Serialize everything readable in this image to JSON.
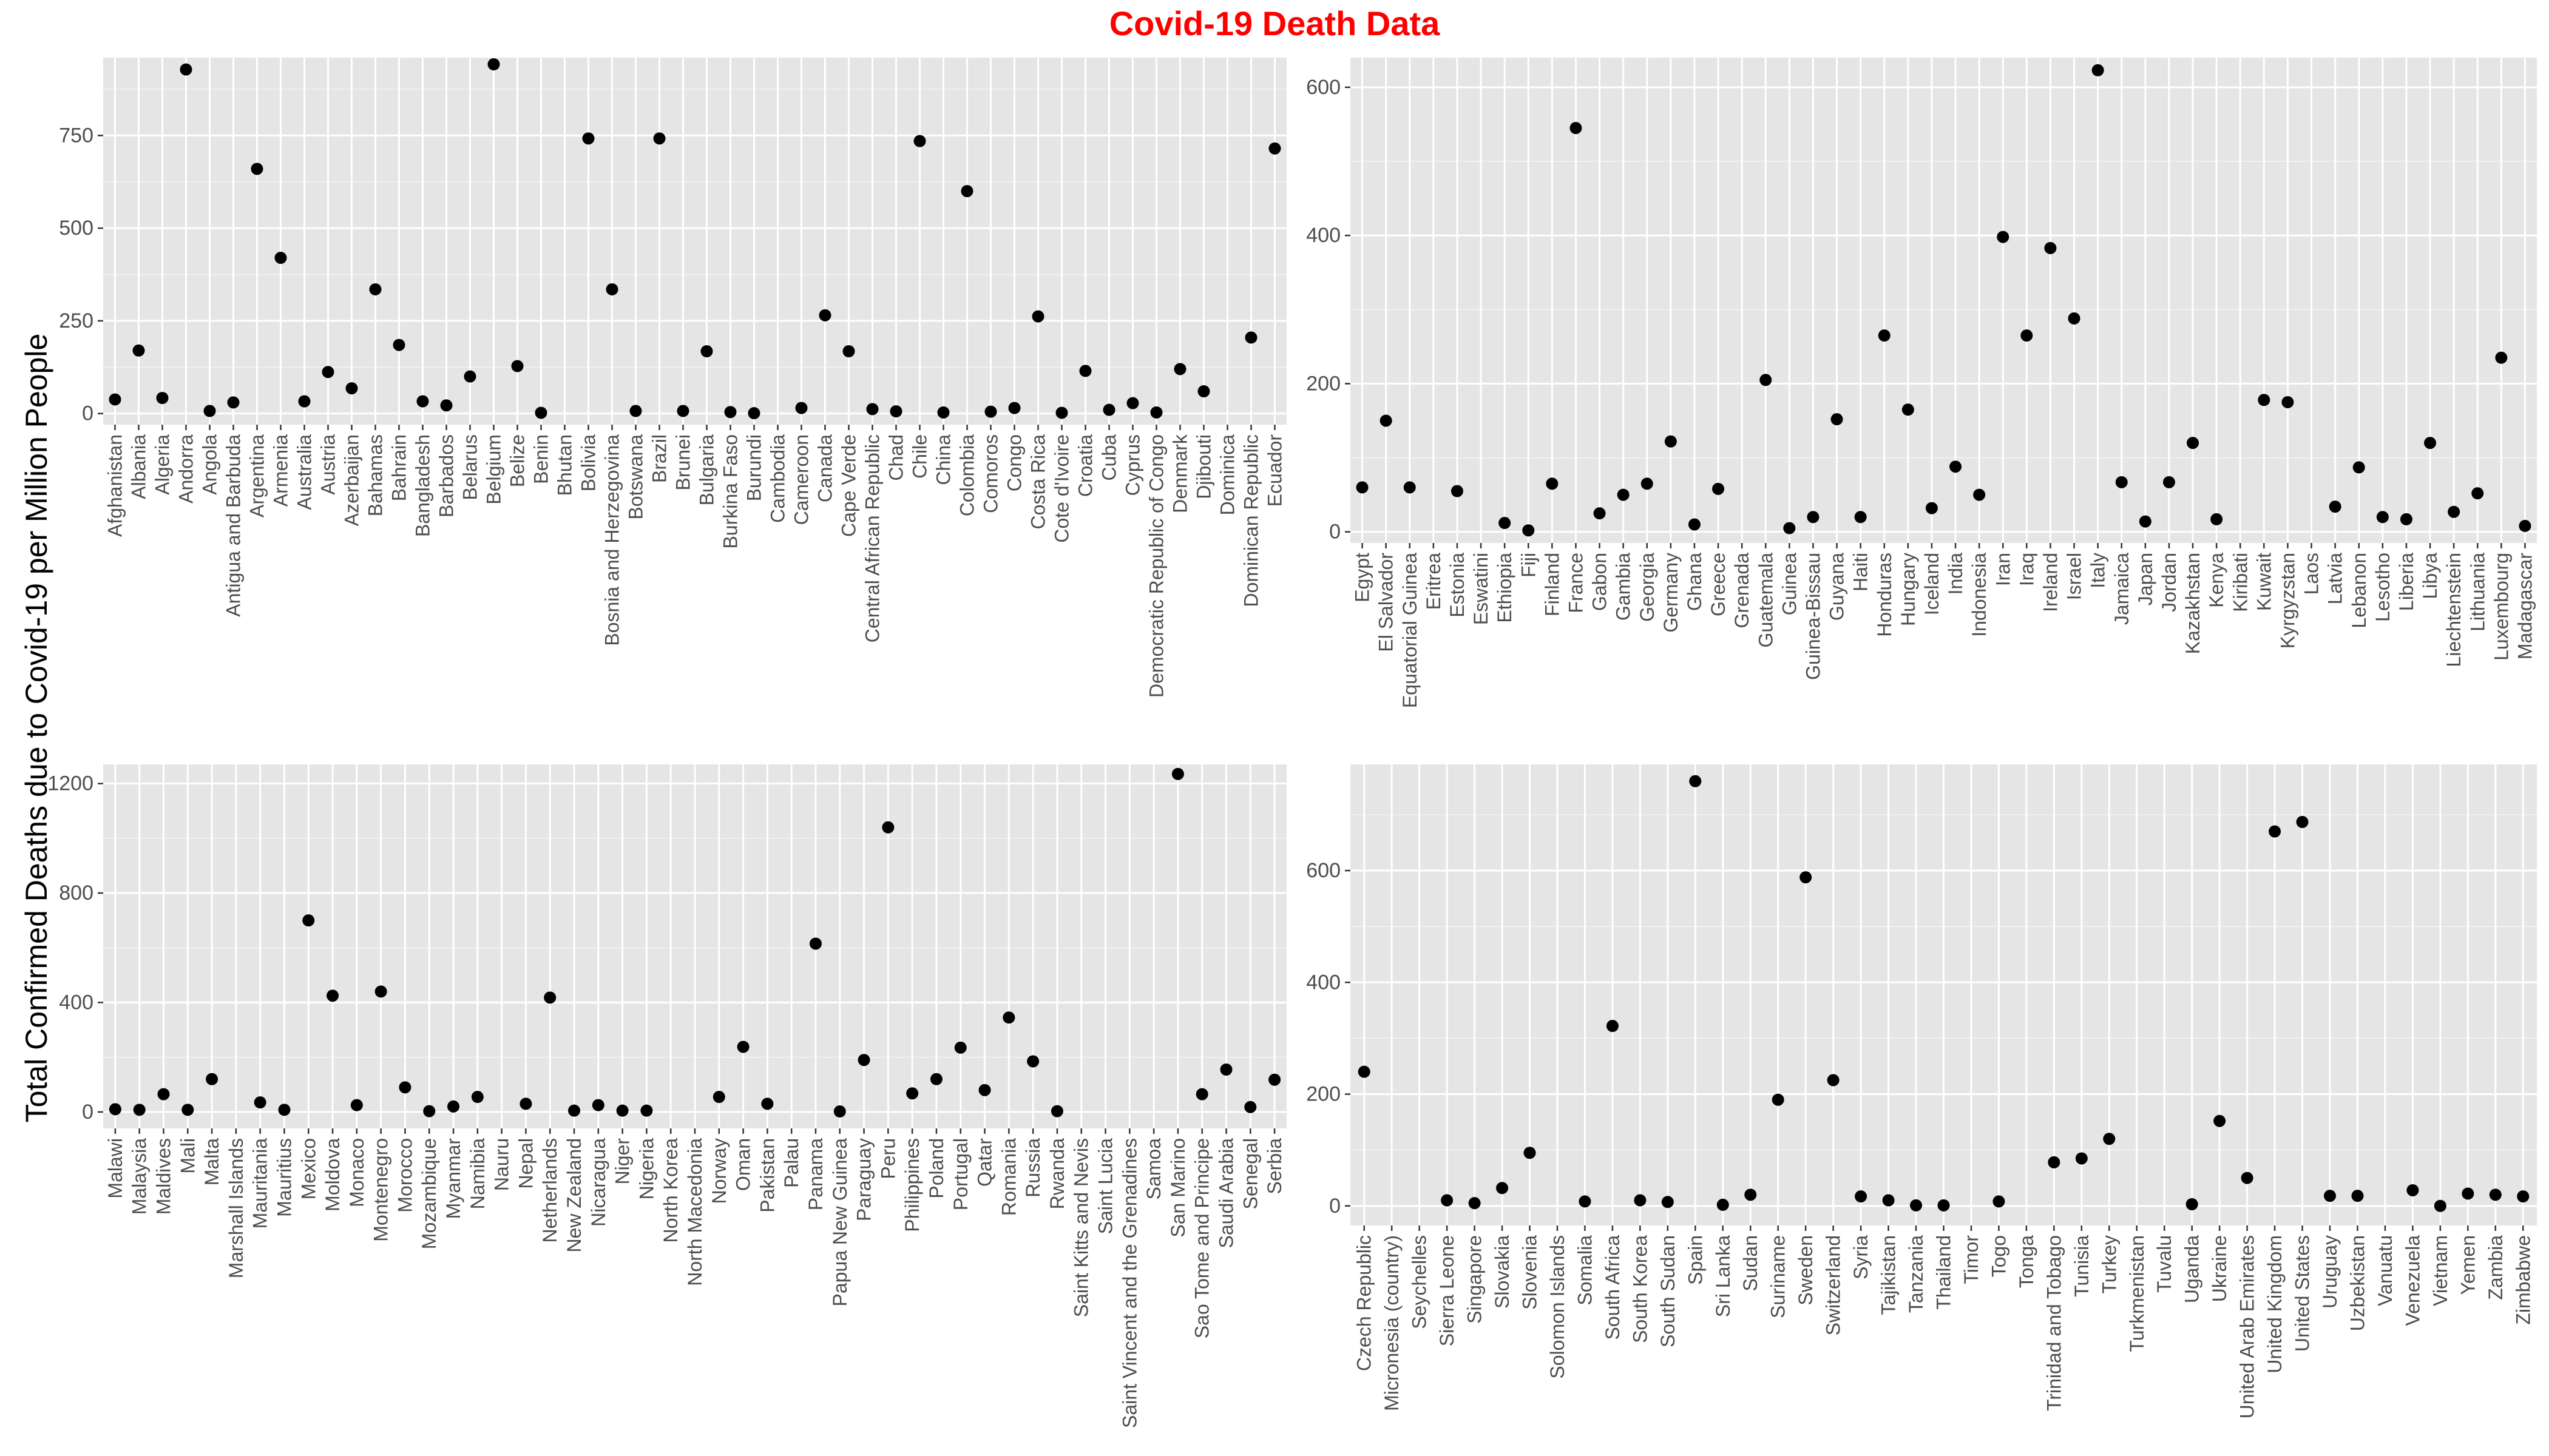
{
  "title": "Covid-19 Death Data",
  "title_color": "#ff0000",
  "ylabel": "Total Confirmed Deaths due to Covid-19 per Million People",
  "panel_bg": "#e5e5e5",
  "grid_color": "#ffffff",
  "point_color": "#000000",
  "chart_data": [
    {
      "type": "scatter",
      "ylim": [
        -30,
        960
      ],
      "yticks": [
        0,
        250,
        500,
        750
      ],
      "grid": true,
      "categories": [
        "Afghanistan",
        "Albania",
        "Algeria",
        "Andorra",
        "Angola",
        "Antigua and Barbuda",
        "Argentina",
        "Armenia",
        "Australia",
        "Austria",
        "Azerbaijan",
        "Bahamas",
        "Bahrain",
        "Bangladesh",
        "Barbados",
        "Belarus",
        "Belgium",
        "Belize",
        "Benin",
        "Bhutan",
        "Bolivia",
        "Bosnia and Herzegovina",
        "Botswana",
        "Brazil",
        "Brunei",
        "Bulgaria",
        "Burkina Faso",
        "Burundi",
        "Cambodia",
        "Cameroon",
        "Canada",
        "Cape Verde",
        "Central African Republic",
        "Chad",
        "Chile",
        "China",
        "Colombia",
        "Comoros",
        "Congo",
        "Costa Rica",
        "Cote d'Ivoire",
        "Croatia",
        "Cuba",
        "Cyprus",
        "Democratic Republic of Congo",
        "Denmark",
        "Djibouti",
        "Dominica",
        "Dominican Republic",
        "Ecuador"
      ],
      "values": [
        38,
        170,
        42,
        928,
        7,
        30,
        660,
        420,
        33,
        112,
        68,
        335,
        185,
        33,
        22,
        100,
        942,
        128,
        2,
        null,
        742,
        335,
        7,
        742,
        7,
        168,
        4,
        1,
        null,
        15,
        265,
        168,
        12,
        6,
        735,
        3,
        600,
        5,
        15,
        262,
        2,
        115,
        10,
        28,
        3,
        120,
        60,
        null,
        205,
        715
      ]
    },
    {
      "type": "scatter",
      "ylim": [
        -15,
        640
      ],
      "yticks": [
        0,
        200,
        400,
        600
      ],
      "grid": true,
      "categories": [
        "Egypt",
        "El Salvador",
        "Equatorial Guinea",
        "Eritrea",
        "Estonia",
        "Eswatini",
        "Ethiopia",
        "Fiji",
        "Finland",
        "France",
        "Gabon",
        "Gambia",
        "Georgia",
        "Germany",
        "Ghana",
        "Greece",
        "Grenada",
        "Guatemala",
        "Guinea",
        "Guinea-Bissau",
        "Guyana",
        "Haiti",
        "Honduras",
        "Hungary",
        "Iceland",
        "India",
        "Indonesia",
        "Iran",
        "Iraq",
        "Ireland",
        "Israel",
        "Italy",
        "Jamaica",
        "Japan",
        "Jordan",
        "Kazakhstan",
        "Kenya",
        "Kiribati",
        "Kuwait",
        "Kyrgyzstan",
        "Laos",
        "Latvia",
        "Lebanon",
        "Lesotho",
        "Liberia",
        "Libya",
        "Liechtenstein",
        "Lithuania",
        "Luxembourg",
        "Madagascar"
      ],
      "values": [
        60,
        150,
        60,
        null,
        55,
        null,
        12,
        2,
        65,
        545,
        25,
        50,
        65,
        122,
        10,
        58,
        null,
        205,
        5,
        20,
        152,
        20,
        265,
        165,
        32,
        88,
        50,
        398,
        265,
        383,
        288,
        623,
        67,
        14,
        67,
        120,
        17,
        null,
        178,
        175,
        null,
        34,
        87,
        20,
        17,
        120,
        27,
        52,
        235,
        8
      ]
    },
    {
      "type": "scatter",
      "ylim": [
        -60,
        1270
      ],
      "yticks": [
        0,
        400,
        800,
        1200
      ],
      "grid": true,
      "categories": [
        "Malawi",
        "Malaysia",
        "Maldives",
        "Mali",
        "Malta",
        "Marshall Islands",
        "Mauritania",
        "Mauritius",
        "Mexico",
        "Moldova",
        "Monaco",
        "Montenegro",
        "Morocco",
        "Mozambique",
        "Myanmar",
        "Namibia",
        "Nauru",
        "Nepal",
        "Netherlands",
        "New Zealand",
        "Nicaragua",
        "Niger",
        "Nigeria",
        "North Korea",
        "North Macedonia",
        "Norway",
        "Oman",
        "Pakistan",
        "Palau",
        "Panama",
        "Papua New Guinea",
        "Paraguay",
        "Peru",
        "Philippines",
        "Poland",
        "Portugal",
        "Qatar",
        "Romania",
        "Russia",
        "Rwanda",
        "Saint Kitts and Nevis",
        "Saint Lucia",
        "Saint Vincent and the Grenadines",
        "Samoa",
        "San Marino",
        "Sao Tome and Principe",
        "Saudi Arabia",
        "Senegal",
        "Serbia"
      ],
      "values": [
        10,
        8,
        65,
        8,
        120,
        null,
        35,
        8,
        700,
        425,
        25,
        440,
        90,
        3,
        20,
        55,
        null,
        30,
        418,
        5,
        25,
        5,
        5,
        null,
        null,
        55,
        238,
        30,
        null,
        615,
        2,
        190,
        1040,
        68,
        120,
        235,
        80,
        345,
        185,
        3,
        null,
        null,
        null,
        null,
        1235,
        65,
        155,
        18,
        118
      ]
    },
    {
      "type": "scatter",
      "ylim": [
        -35,
        790
      ],
      "yticks": [
        0,
        200,
        400,
        600
      ],
      "grid": true,
      "categories": [
        "Czech Republic",
        "Micronesia (country)",
        "Seychelles",
        "Sierra Leone",
        "Singapore",
        "Slovakia",
        "Slovenia",
        "Solomon Islands",
        "Somalia",
        "South Africa",
        "South Korea",
        "South Sudan",
        "Spain",
        "Sri Lanka",
        "Sudan",
        "Suriname",
        "Sweden",
        "Switzerland",
        "Syria",
        "Tajikistan",
        "Tanzania",
        "Thailand",
        "Timor",
        "Togo",
        "Tonga",
        "Trinidad and Tobago",
        "Tunisia",
        "Turkey",
        "Turkmenistan",
        "Tuvalu",
        "Uganda",
        "Ukraine",
        "United Arab Emirates",
        "United Kingdom",
        "United States",
        "Uruguay",
        "Uzbekistan",
        "Vanuatu",
        "Venezuela",
        "Vietnam",
        "Yemen",
        "Zambia",
        "Zimbabwe"
      ],
      "values": [
        240,
        null,
        null,
        10,
        5,
        32,
        95,
        null,
        8,
        322,
        10,
        7,
        760,
        2,
        20,
        190,
        588,
        225,
        17,
        10,
        1,
        1,
        null,
        8,
        null,
        78,
        85,
        120,
        null,
        null,
        3,
        152,
        50,
        670,
        687,
        18,
        18,
        null,
        28,
        0,
        22,
        20,
        17
      ]
    }
  ]
}
